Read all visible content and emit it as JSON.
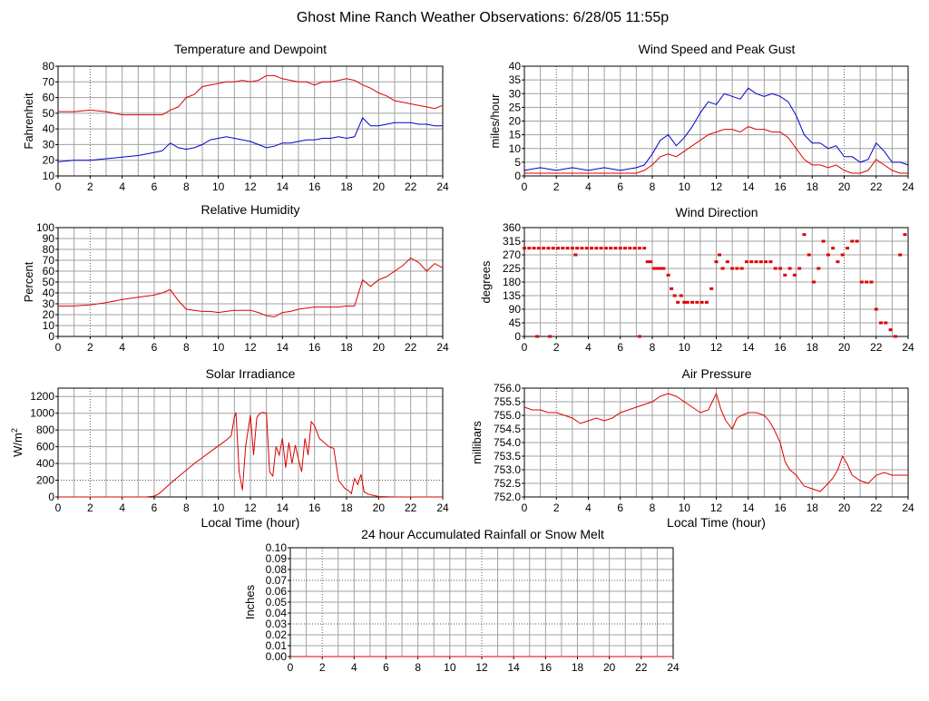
{
  "page_title": "Ghost Mine Ranch Weather Observations: 6/28/05 11:55p",
  "colors": {
    "red": "#dd0000",
    "blue": "#0000cc",
    "grid": "#a0a0a0",
    "axis": "#000000"
  },
  "chart_data": [
    {
      "id": "temperature",
      "type": "line",
      "title": "Temperature and Dewpoint",
      "ylabel": "Fahrenheit",
      "xlabel": "",
      "xlim": [
        0,
        24
      ],
      "ylim": [
        10,
        80
      ],
      "xticks": [
        0,
        2,
        4,
        6,
        8,
        10,
        12,
        14,
        16,
        18,
        20,
        22,
        24
      ],
      "yticks": [
        10,
        20,
        30,
        40,
        50,
        60,
        70,
        80
      ],
      "series": [
        {
          "color": "#dd0000",
          "x": [
            0,
            1,
            2,
            3,
            4,
            5,
            6,
            6.5,
            7,
            7.5,
            8,
            8.5,
            9,
            9.5,
            10,
            10.5,
            11,
            11.5,
            12,
            12.5,
            13,
            13.5,
            14,
            14.5,
            15,
            15.5,
            16,
            16.5,
            17,
            17.5,
            18,
            18.5,
            19,
            19.5,
            20,
            20.5,
            21,
            21.5,
            22,
            22.5,
            23,
            23.5,
            24
          ],
          "y": [
            51,
            51,
            52,
            51,
            49,
            49,
            49,
            49,
            52,
            54,
            60,
            62,
            67,
            68,
            69,
            70,
            70,
            71,
            70,
            71,
            74,
            74,
            72,
            71,
            70,
            70,
            68,
            70,
            70,
            71,
            72,
            71,
            68,
            66,
            63,
            61,
            58,
            57,
            56,
            55,
            54,
            53,
            55
          ]
        },
        {
          "color": "#0000cc",
          "x": [
            0,
            1,
            2,
            3,
            4,
            5,
            6,
            6.5,
            7,
            7.5,
            8,
            8.5,
            9,
            9.5,
            10,
            10.5,
            11,
            11.5,
            12,
            12.5,
            13,
            13.5,
            14,
            14.5,
            15,
            15.5,
            16,
            16.5,
            17,
            17.5,
            18,
            18.5,
            19,
            19.5,
            20,
            20.5,
            21,
            21.5,
            22,
            22.5,
            23,
            23.5,
            24
          ],
          "y": [
            19,
            20,
            20,
            21,
            22,
            23,
            25,
            26,
            31,
            28,
            27,
            28,
            30,
            33,
            34,
            35,
            34,
            33,
            32,
            30,
            28,
            29,
            31,
            31,
            32,
            33,
            33,
            34,
            34,
            35,
            34,
            35,
            47,
            42,
            42,
            43,
            44,
            44,
            44,
            43,
            43,
            42,
            42
          ]
        }
      ]
    },
    {
      "id": "wind_speed",
      "type": "line",
      "title": "Wind Speed and Peak Gust",
      "ylabel": "miles/hour",
      "xlabel": "",
      "xlim": [
        0,
        24
      ],
      "ylim": [
        0,
        40
      ],
      "xticks": [
        0,
        2,
        4,
        6,
        8,
        10,
        12,
        14,
        16,
        18,
        20,
        22,
        24
      ],
      "yticks": [
        0,
        5,
        10,
        15,
        20,
        25,
        30,
        35,
        40
      ],
      "series": [
        {
          "color": "#0000cc",
          "x": [
            0,
            1,
            2,
            3,
            4,
            5,
            6,
            7,
            7.5,
            8,
            8.5,
            9,
            9.5,
            10,
            10.5,
            11,
            11.5,
            12,
            12.5,
            13,
            13.5,
            14,
            14.5,
            15,
            15.5,
            16,
            16.5,
            17,
            17.5,
            18,
            18.5,
            19,
            19.5,
            20,
            20.5,
            21,
            21.5,
            22,
            22.5,
            23,
            23.5,
            24
          ],
          "y": [
            2,
            3,
            2,
            3,
            2,
            3,
            2,
            3,
            4,
            8,
            13,
            15,
            11,
            14,
            18,
            23,
            27,
            26,
            30,
            29,
            28,
            32,
            30,
            29,
            30,
            29,
            27,
            22,
            15,
            12,
            12,
            10,
            11,
            7,
            7,
            5,
            6,
            12,
            9,
            5,
            5,
            4
          ]
        },
        {
          "color": "#dd0000",
          "x": [
            0,
            1,
            2,
            3,
            4,
            5,
            6,
            7,
            7.5,
            8,
            8.5,
            9,
            9.5,
            10,
            10.5,
            11,
            11.5,
            12,
            12.5,
            13,
            13.5,
            14,
            14.5,
            15,
            15.5,
            16,
            16.5,
            17,
            17.5,
            18,
            18.5,
            19,
            19.5,
            20,
            20.5,
            21,
            21.5,
            22,
            22.5,
            23,
            23.5,
            24
          ],
          "y": [
            1,
            1,
            1,
            1,
            1,
            1,
            1,
            1,
            2,
            4,
            7,
            8,
            7,
            9,
            11,
            13,
            15,
            16,
            17,
            17,
            16,
            18,
            17,
            17,
            16,
            16,
            14,
            10,
            6,
            4,
            4,
            3,
            4,
            2,
            1,
            1,
            2,
            6,
            4,
            2,
            1,
            1
          ]
        }
      ]
    },
    {
      "id": "humidity",
      "type": "line",
      "title": "Relative Humidity",
      "ylabel": "Percent",
      "xlabel": "",
      "xlim": [
        0,
        24
      ],
      "ylim": [
        0,
        100
      ],
      "xticks": [
        0,
        2,
        4,
        6,
        8,
        10,
        12,
        14,
        16,
        18,
        20,
        22,
        24
      ],
      "yticks": [
        0,
        10,
        20,
        30,
        40,
        50,
        60,
        70,
        80,
        90,
        100
      ],
      "series": [
        {
          "color": "#dd0000",
          "x": [
            0,
            1,
            2,
            3,
            4,
            5,
            6,
            6.5,
            7,
            7.5,
            8,
            8.5,
            9,
            9.5,
            10,
            10.5,
            11,
            11.5,
            12,
            12.5,
            13,
            13.5,
            14,
            14.5,
            15,
            15.5,
            16,
            16.5,
            17,
            17.5,
            18,
            18.5,
            19,
            19.5,
            20,
            20.5,
            21,
            21.5,
            22,
            22.5,
            23,
            23.5,
            24
          ],
          "y": [
            28,
            28,
            29,
            31,
            34,
            36,
            38,
            40,
            43,
            33,
            25,
            24,
            23,
            23,
            22,
            23,
            24,
            24,
            24,
            22,
            19,
            18,
            22,
            23,
            25,
            26,
            27,
            27,
            27,
            27,
            28,
            28,
            52,
            46,
            52,
            55,
            60,
            65,
            72,
            68,
            60,
            67,
            63
          ]
        }
      ]
    },
    {
      "id": "wind_direction",
      "type": "scatter",
      "title": "Wind Direction",
      "ylabel": "degrees",
      "xlabel": "",
      "xlim": [
        0,
        24
      ],
      "ylim": [
        0,
        360
      ],
      "xticks": [
        0,
        2,
        4,
        6,
        8,
        10,
        12,
        14,
        16,
        18,
        20,
        22,
        24
      ],
      "yticks": [
        0,
        45,
        90,
        135,
        180,
        225,
        270,
        315,
        360
      ],
      "series": [
        {
          "color": "#dd0000",
          "x": [
            0,
            0.3,
            0.6,
            0.9,
            1.2,
            1.5,
            1.8,
            2.1,
            2.4,
            2.7,
            3,
            3.3,
            3.6,
            3.9,
            4.2,
            4.5,
            4.8,
            5.1,
            5.4,
            5.7,
            6,
            6.3,
            6.6,
            6.9,
            7.2,
            7.5,
            7.7,
            7.9,
            8.1,
            8.3,
            8.5,
            8.7,
            9,
            9.2,
            9.4,
            9.6,
            9.8,
            10,
            10.2,
            10.5,
            10.8,
            11.1,
            11.4,
            11.7,
            12,
            12.2,
            12.4,
            12.7,
            13,
            13.3,
            13.6,
            13.9,
            14.2,
            14.5,
            14.8,
            15.1,
            15.4,
            15.7,
            16,
            16.3,
            16.6,
            16.9,
            17.2,
            17.5,
            17.8,
            18.1,
            18.4,
            18.7,
            19,
            19.3,
            19.6,
            19.9,
            20.2,
            20.5,
            20.8,
            21.1,
            21.4,
            21.7,
            22,
            22.3,
            22.6,
            22.9,
            23.2,
            23.5,
            23.8,
            0.8,
            1.6,
            7.2,
            3.2
          ],
          "y": [
            292,
            292,
            292,
            292,
            292,
            292,
            292,
            292,
            292,
            292,
            292,
            292,
            292,
            292,
            292,
            292,
            292,
            292,
            292,
            292,
            292,
            292,
            292,
            292,
            292,
            292,
            247,
            247,
            225,
            225,
            225,
            225,
            203,
            158,
            135,
            113,
            135,
            113,
            113,
            113,
            113,
            113,
            113,
            158,
            247,
            270,
            225,
            247,
            225,
            225,
            225,
            247,
            247,
            247,
            247,
            247,
            247,
            225,
            225,
            203,
            225,
            203,
            225,
            337,
            270,
            180,
            225,
            315,
            270,
            292,
            247,
            270,
            292,
            315,
            315,
            180,
            180,
            180,
            90,
            45,
            45,
            22,
            0,
            270,
            337,
            0,
            0,
            0,
            270
          ]
        }
      ]
    },
    {
      "id": "solar",
      "type": "line",
      "title": "Solar Irradiance",
      "ylabel": "W/m",
      "ylabel_sup": "2",
      "xlabel": "Local Time (hour)",
      "xlim": [
        0,
        24
      ],
      "ylim": [
        0,
        1300
      ],
      "xticks": [
        0,
        2,
        4,
        6,
        8,
        10,
        12,
        14,
        16,
        18,
        20,
        22,
        24
      ],
      "yticks": [
        0,
        200,
        400,
        600,
        800,
        1000,
        1200
      ],
      "series": [
        {
          "color": "#dd0000",
          "x": [
            0,
            2,
            4,
            5.5,
            6,
            6.3,
            6.6,
            7,
            7.5,
            8,
            8.5,
            9,
            9.5,
            10,
            10.5,
            10.8,
            11,
            11.1,
            11.3,
            11.5,
            11.7,
            12,
            12.2,
            12.4,
            12.6,
            12.8,
            13,
            13.2,
            13.4,
            13.6,
            13.8,
            14,
            14.2,
            14.4,
            14.6,
            14.8,
            15,
            15.2,
            15.4,
            15.6,
            15.8,
            16,
            16.3,
            16.6,
            16.9,
            17.2,
            17.5,
            17.7,
            17.9,
            18.1,
            18.3,
            18.5,
            18.7,
            18.9,
            19.1,
            19.4,
            20,
            21,
            22,
            23,
            24
          ],
          "y": [
            0,
            0,
            0,
            0,
            10,
            40,
            90,
            160,
            240,
            320,
            400,
            470,
            540,
            610,
            680,
            730,
            950,
            1010,
            300,
            80,
            600,
            980,
            500,
            950,
            1000,
            1010,
            1000,
            300,
            250,
            600,
            500,
            700,
            350,
            650,
            400,
            620,
            450,
            300,
            700,
            500,
            900,
            850,
            700,
            650,
            600,
            580,
            200,
            150,
            100,
            80,
            40,
            220,
            150,
            270,
            60,
            30,
            5,
            0,
            0,
            0,
            0
          ]
        }
      ]
    },
    {
      "id": "pressure",
      "type": "line",
      "title": "Air Pressure",
      "ylabel": "millibars",
      "xlabel": "Local Time (hour)",
      "xlim": [
        0,
        24
      ],
      "ylim": [
        752.0,
        756.0
      ],
      "xticks": [
        0,
        2,
        4,
        6,
        8,
        10,
        12,
        14,
        16,
        18,
        20,
        22,
        24
      ],
      "yticks": [
        752.0,
        752.5,
        753.0,
        753.5,
        754.0,
        754.5,
        755.0,
        755.5,
        756.0
      ],
      "ytick_labels": [
        "752.0",
        "752.5",
        "753.0",
        "753.5",
        "754.0",
        "754.5",
        "755.0",
        "755.5",
        "756.0"
      ],
      "series": [
        {
          "color": "#dd0000",
          "x": [
            0,
            0.5,
            1,
            1.5,
            2,
            2.5,
            3,
            3.5,
            4,
            4.5,
            5,
            5.5,
            6,
            6.5,
            7,
            7.5,
            8,
            8.5,
            9,
            9.5,
            10,
            10.5,
            11,
            11.5,
            12,
            12.3,
            12.6,
            13,
            13.3,
            13.6,
            14,
            14.5,
            15,
            15.3,
            15.6,
            16,
            16.3,
            16.6,
            17,
            17.5,
            18,
            18.5,
            19,
            19.3,
            19.6,
            19.9,
            20.2,
            20.5,
            21,
            21.5,
            22,
            22.5,
            23,
            23.5,
            24
          ],
          "y": [
            755.3,
            755.2,
            755.2,
            755.1,
            755.1,
            755.0,
            754.9,
            754.7,
            754.8,
            754.9,
            754.8,
            754.9,
            755.1,
            755.2,
            755.3,
            755.4,
            755.5,
            755.7,
            755.8,
            755.7,
            755.5,
            755.3,
            755.1,
            755.2,
            755.8,
            755.2,
            754.8,
            754.5,
            754.9,
            755.0,
            755.1,
            755.1,
            755.0,
            754.8,
            754.5,
            754.0,
            753.3,
            753.0,
            752.8,
            752.4,
            752.3,
            752.2,
            752.5,
            752.7,
            753.0,
            753.5,
            753.2,
            752.8,
            752.6,
            752.5,
            752.8,
            752.9,
            752.8,
            752.8,
            752.8
          ]
        }
      ]
    },
    {
      "id": "rainfall",
      "type": "line",
      "title": "24 hour Accumulated Rainfall or Snow Melt",
      "ylabel": "Inches",
      "xlabel": "",
      "xlim": [
        0,
        24
      ],
      "ylim": [
        0,
        0.1
      ],
      "xticks": [
        0,
        2,
        4,
        6,
        8,
        10,
        12,
        14,
        16,
        18,
        20,
        22,
        24
      ],
      "yticks": [
        0,
        0.01,
        0.02,
        0.03,
        0.04,
        0.05,
        0.06,
        0.07,
        0.08,
        0.09,
        0.1
      ],
      "ytick_labels": [
        "0.00",
        "0.01",
        "0.02",
        "0.03",
        "0.04",
        "0.05",
        "0.06",
        "0.07",
        "0.08",
        "0.09",
        "0.10"
      ],
      "series": [
        {
          "color": "#dd0000",
          "x": [
            0,
            24
          ],
          "y": [
            0,
            0
          ]
        }
      ]
    }
  ]
}
